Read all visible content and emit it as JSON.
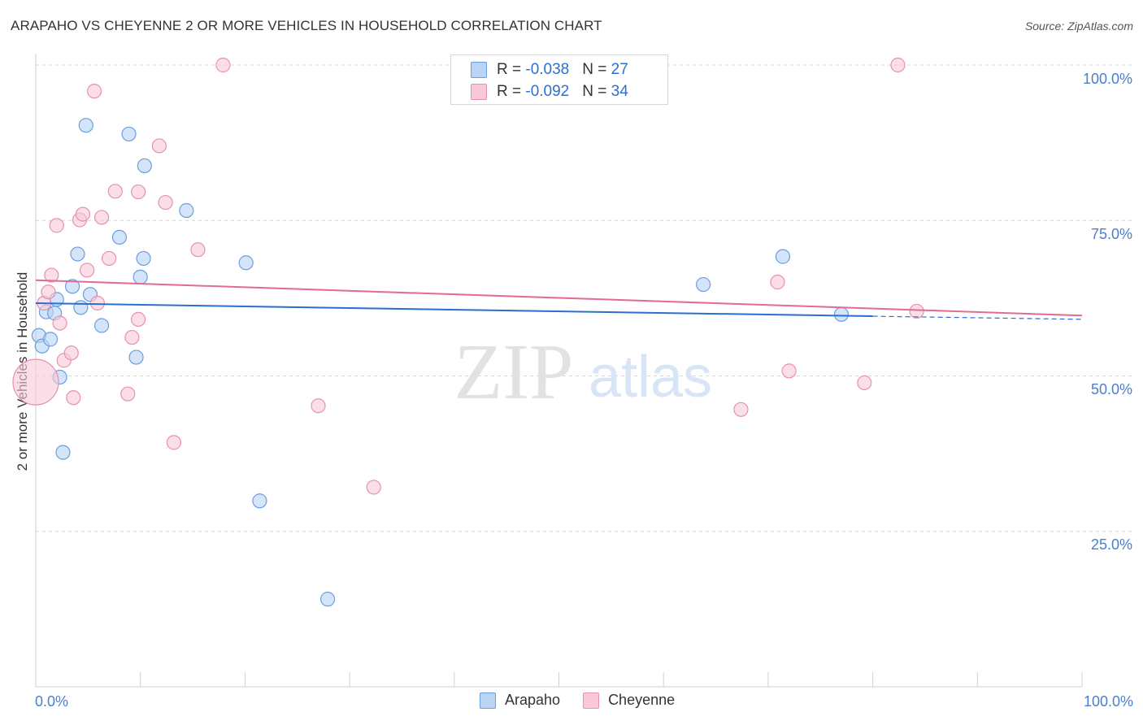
{
  "header": {
    "title": "ARAPAHO VS CHEYENNE 2 OR MORE VEHICLES IN HOUSEHOLD CORRELATION CHART",
    "source": "Source: ZipAtlas.com"
  },
  "watermark": {
    "zip": "ZIP",
    "atlas": "atlas"
  },
  "legend": {
    "rows": [
      {
        "series": "Arapaho",
        "r_label": "R = ",
        "r_value": "-0.038",
        "n_label": "N = ",
        "n_value": "27"
      },
      {
        "series": "Cheyenne",
        "r_label": "R = ",
        "r_value": "-0.092",
        "n_label": "N = ",
        "n_value": "34"
      }
    ],
    "bottom": [
      "Arapaho",
      "Cheyenne"
    ]
  },
  "colors": {
    "arapaho_fill": "#b9d4f5",
    "arapaho_stroke": "#6a9ee0",
    "arapaho_line": "#2a6fd0",
    "cheyenne_fill": "#f9c9d8",
    "cheyenne_stroke": "#e890ae",
    "cheyenne_line": "#e26a94",
    "tick_text": "#4a7fd0",
    "grid": "#d6d6d6"
  },
  "chart_data": {
    "type": "scatter",
    "title": "ARAPAHO VS CHEYENNE 2 OR MORE VEHICLES IN HOUSEHOLD CORRELATION CHART",
    "xlabel": "",
    "ylabel": "2 or more Vehicles in Household",
    "xlim": [
      0,
      100
    ],
    "ylim": [
      0,
      102
    ],
    "x_tick_labels": [
      "0.0%",
      "100.0%"
    ],
    "y_ticks": [
      25,
      50,
      75,
      100
    ],
    "y_tick_labels": [
      "25.0%",
      "50.0%",
      "75.0%",
      "100.0%"
    ],
    "grid": true,
    "legend_position": "top-center",
    "series": [
      {
        "name": "Arapaho",
        "r": -0.038,
        "n": 27,
        "trend": {
          "x_start": 0,
          "y_start": 61.7,
          "x_solid_end": 80,
          "y_solid_end": 59.6,
          "x_dash_end": 100,
          "y_dash_end": 59.1
        },
        "points": [
          {
            "x": 0.3,
            "y": 56.5
          },
          {
            "x": 0.6,
            "y": 54.8
          },
          {
            "x": 1.0,
            "y": 60.3
          },
          {
            "x": 1.4,
            "y": 55.9
          },
          {
            "x": 1.8,
            "y": 60.1
          },
          {
            "x": 2.0,
            "y": 62.3
          },
          {
            "x": 2.3,
            "y": 49.8
          },
          {
            "x": 2.6,
            "y": 37.7
          },
          {
            "x": 3.5,
            "y": 64.4
          },
          {
            "x": 4.0,
            "y": 69.6
          },
          {
            "x": 4.3,
            "y": 61.0
          },
          {
            "x": 4.8,
            "y": 90.3
          },
          {
            "x": 5.2,
            "y": 63.1
          },
          {
            "x": 6.3,
            "y": 58.1
          },
          {
            "x": 8.0,
            "y": 72.3
          },
          {
            "x": 8.9,
            "y": 88.9
          },
          {
            "x": 9.6,
            "y": 53.0
          },
          {
            "x": 10.0,
            "y": 65.9
          },
          {
            "x": 10.3,
            "y": 68.9
          },
          {
            "x": 10.4,
            "y": 83.8
          },
          {
            "x": 14.4,
            "y": 76.6
          },
          {
            "x": 20.1,
            "y": 68.2
          },
          {
            "x": 21.4,
            "y": 29.9
          },
          {
            "x": 27.9,
            "y": 14.1
          },
          {
            "x": 63.8,
            "y": 64.7
          },
          {
            "x": 71.4,
            "y": 69.2
          },
          {
            "x": 77.0,
            "y": 59.9
          }
        ]
      },
      {
        "name": "Cheyenne",
        "r": -0.092,
        "n": 34,
        "trend": {
          "x_start": 0,
          "y_start": 65.4,
          "x_end": 100,
          "y_end": 59.7
        },
        "points": [
          {
            "x": 0.0,
            "y": 49.0,
            "big": true
          },
          {
            "x": 0.8,
            "y": 61.7
          },
          {
            "x": 1.2,
            "y": 63.5
          },
          {
            "x": 1.5,
            "y": 66.2
          },
          {
            "x": 2.0,
            "y": 74.2
          },
          {
            "x": 2.3,
            "y": 58.5
          },
          {
            "x": 2.7,
            "y": 52.5
          },
          {
            "x": 3.4,
            "y": 53.7
          },
          {
            "x": 3.6,
            "y": 46.5
          },
          {
            "x": 4.2,
            "y": 75.1
          },
          {
            "x": 4.5,
            "y": 76.0
          },
          {
            "x": 4.9,
            "y": 67.0
          },
          {
            "x": 5.6,
            "y": 95.8
          },
          {
            "x": 5.9,
            "y": 61.7
          },
          {
            "x": 6.3,
            "y": 75.5
          },
          {
            "x": 7.0,
            "y": 68.9
          },
          {
            "x": 7.6,
            "y": 79.7
          },
          {
            "x": 8.8,
            "y": 47.1
          },
          {
            "x": 9.2,
            "y": 56.2
          },
          {
            "x": 9.8,
            "y": 59.1
          },
          {
            "x": 9.8,
            "y": 79.6
          },
          {
            "x": 11.8,
            "y": 87.0
          },
          {
            "x": 12.4,
            "y": 77.9
          },
          {
            "x": 13.2,
            "y": 39.3
          },
          {
            "x": 15.5,
            "y": 70.3
          },
          {
            "x": 17.9,
            "y": 100.0
          },
          {
            "x": 27.0,
            "y": 45.2
          },
          {
            "x": 32.3,
            "y": 32.1
          },
          {
            "x": 67.4,
            "y": 44.6
          },
          {
            "x": 70.9,
            "y": 65.1
          },
          {
            "x": 72.0,
            "y": 50.8
          },
          {
            "x": 79.2,
            "y": 48.9
          },
          {
            "x": 82.4,
            "y": 100.0
          },
          {
            "x": 84.2,
            "y": 60.4
          }
        ]
      }
    ]
  }
}
